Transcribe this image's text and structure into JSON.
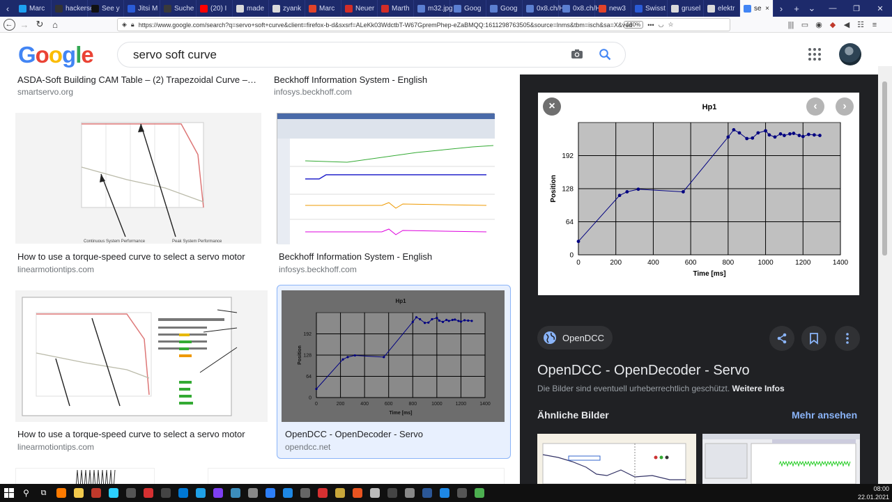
{
  "tabs": [
    {
      "label": "Marc",
      "color": "#1da1f2"
    },
    {
      "label": "hackersca",
      "color": "#333333"
    },
    {
      "label": "See y",
      "color": "#111111"
    },
    {
      "label": "Jitsi M",
      "color": "#2a5bd7"
    },
    {
      "label": "Suche",
      "color": "#3a3a3a"
    },
    {
      "label": "(20) I",
      "color": "#ff0000"
    },
    {
      "label": "made",
      "color": "#dadada"
    },
    {
      "label": "zyank",
      "color": "#dadada"
    },
    {
      "label": "Marc",
      "color": "#e24329"
    },
    {
      "label": "Neuer",
      "color": "#d32d27"
    },
    {
      "label": "Marth",
      "color": "#d32d27"
    },
    {
      "label": "m32.jpg (",
      "color": "#5b7fd1"
    },
    {
      "label": "Goog",
      "color": "#5b7fd1"
    },
    {
      "label": "Goog",
      "color": "#5b7fd1"
    },
    {
      "label": "0x8.ch/Ha",
      "color": "#5b7fd1"
    },
    {
      "label": "0x8.ch/Ha",
      "color": "#5b7fd1"
    },
    {
      "label": "new3",
      "color": "#e24329"
    },
    {
      "label": "Swisst",
      "color": "#2a5bd7"
    },
    {
      "label": "grusel",
      "color": "#dadada"
    },
    {
      "label": "elektr",
      "color": "#dadada"
    }
  ],
  "active_tab": {
    "label": "se"
  },
  "url": "https://www.google.com/search?q=servo+soft+curve&client=firefox-b-d&sxsrf=ALeKk03WdctbT-W67GpremPhep-eZaBMQQ:1611298763505&source=lnms&tbm=isch&sa=X&ved",
  "zoom": "160%",
  "google": {
    "logo": "Google",
    "query": "servo soft curve"
  },
  "results": {
    "top_left_title": "ASDA-Soft Building CAM Table – (2) Trapezoidal Curve –…",
    "top_left_source": "smartservo.org",
    "top_right_title": "Beckhoff Information System - English",
    "top_right_source": "infosys.beckhoff.com",
    "r1_left_title": "How to use a torque-speed curve to select a servo motor",
    "r1_left_source": "linearmotiontips.com",
    "r1_right_title": "Beckhoff Information System - English",
    "r1_right_source": "infosys.beckhoff.com",
    "r2_left_title": "How to use a torque-speed curve to select a servo motor",
    "r2_left_source": "linearmotiontips.com",
    "r2_right_title": "OpenDCC - OpenDecoder - Servo",
    "r2_right_source": "opendcc.net",
    "torque_labels": {
      "continuous": "Continuous System Performance",
      "peak": "Peak System Performance"
    }
  },
  "panel": {
    "site": "OpenDCC",
    "title": "OpenDCC - OpenDecoder - Servo",
    "note": "Die Bilder sind eventuell urheberrechtlich geschützt.",
    "note_link": "Weitere Infos",
    "similar": "Ähnliche Bilder",
    "more": "Mehr ansehen"
  },
  "chart_data": {
    "type": "line",
    "title": "Hp1",
    "xlabel": "Time [ms]",
    "ylabel": "Position",
    "xlim": [
      0,
      1400
    ],
    "ylim": [
      0,
      256
    ],
    "xticks": [
      0,
      200,
      400,
      600,
      800,
      1000,
      1200,
      1400
    ],
    "yticks": [
      0,
      64,
      128,
      192
    ],
    "grid": true,
    "line_color": "#000080",
    "plot_bg": "#c0c0c0",
    "x": [
      0,
      220,
      260,
      320,
      560,
      800,
      830,
      860,
      900,
      930,
      960,
      1000,
      1020,
      1050,
      1080,
      1100,
      1130,
      1150,
      1180,
      1200,
      1230,
      1260,
      1290
    ],
    "y": [
      26,
      115,
      122,
      127,
      122,
      228,
      242,
      236,
      225,
      226,
      236,
      240,
      232,
      228,
      234,
      231,
      234,
      235,
      231,
      229,
      233,
      232,
      231
    ]
  },
  "taskbar": {
    "clock_time": "08:00",
    "clock_date": "22.01.2021"
  }
}
